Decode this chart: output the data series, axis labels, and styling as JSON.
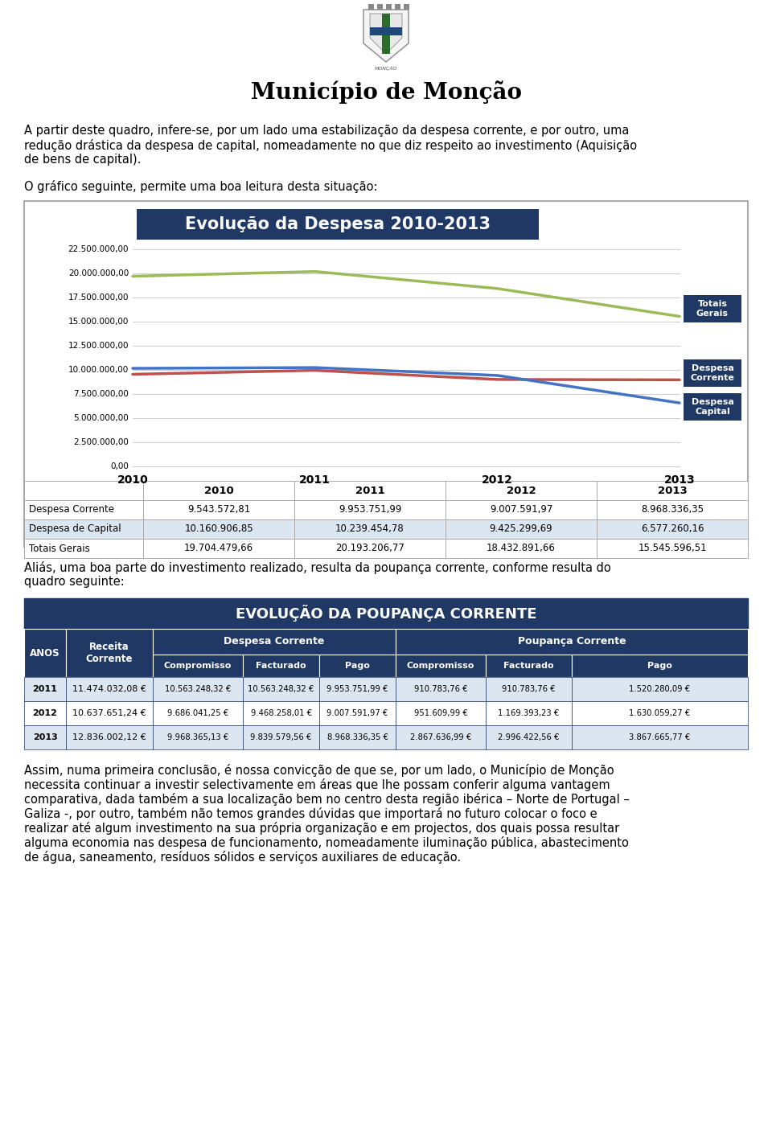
{
  "title": "Município de Monção",
  "para1_lines": [
    "A partir deste quadro, infere-se, por um lado uma estabilização da despesa corrente, e por outro, uma",
    "redução drástica da despesa de capital, nomeadamente no que diz respeito ao investimento (Aquisição",
    "de bens de capital)."
  ],
  "para2": "O gráfico seguinte, permite uma boa leitura desta situação:",
  "chart_title": "Evolução da Despesa 2010-2013",
  "years": [
    2010,
    2011,
    2012,
    2013
  ],
  "despesa_corrente": [
    9543572.81,
    9953751.99,
    9007591.97,
    8968336.35
  ],
  "despesa_capital": [
    10160906.85,
    10239454.78,
    9425299.69,
    6577260.16
  ],
  "totais_gerais": [
    19704479.66,
    20193206.77,
    18432891.66,
    15545596.51
  ],
  "line_color_corrente": "#c0504d",
  "line_color_capital": "#4472c4",
  "line_color_totais": "#9bbb59",
  "yticks": [
    0,
    2500000,
    5000000,
    7500000,
    10000000,
    12500000,
    15000000,
    17500000,
    20000000,
    22500000
  ],
  "ytick_labels": [
    "0,00",
    "2.500.000,00",
    "5.000.000,00",
    "7.500.000,00",
    "10.000.000,00",
    "12.500.000,00",
    "15.000.000,00",
    "17.500.000,00",
    "20.000.000,00",
    "22.500.000,00"
  ],
  "table1_col0": [
    "Despesa Corrente",
    "Despesa de Capital",
    "Totais Gerais"
  ],
  "table1_data": [
    [
      "9.543.572,81",
      "9.953.751,99",
      "9.007.591,97",
      "8.968.336,35"
    ],
    [
      "10.160.906,85",
      "10.239.454,78",
      "9.425.299,69",
      "6.577.260,16"
    ],
    [
      "19.704.479,66",
      "20.193.206,77",
      "18.432.891,66",
      "15.545.596,51"
    ]
  ],
  "para3_lines": [
    "Aliás, uma boa parte do investimento realizado, resulta da poupança corrente, conforme resulta do",
    "quadro seguinte:"
  ],
  "poupanca_title": "EVOLUÇÃO DA POUPANÇA CORRENTE",
  "poupanca_rows": [
    [
      "2011",
      "11.474.032,08 €",
      "10.563.248,32 €",
      "10.563.248,32 €",
      "9.953.751,99 €",
      "910.783,76 €",
      "910.783,76 €",
      "1.520.280,09 €"
    ],
    [
      "2012",
      "10.637.651,24 €",
      "9.686.041,25 €",
      "9.468.258,01 €",
      "9.007.591,97 €",
      "951.609,99 €",
      "1.169.393,23 €",
      "1.630.059,27 €"
    ],
    [
      "2013",
      "12.836.002,12 €",
      "9.968.365,13 €",
      "9.839.579,56 €",
      "8.968.336,35 €",
      "2.867.636,99 €",
      "2.996.422,56 €",
      "3.867.665,77 €"
    ]
  ],
  "para4_lines": [
    "Assim, numa primeira conclusão, é nossa convicção de que se, por um lado, o Município de Monção",
    "necessita continuar a investir selectivamente em áreas que lhe possam conferir alguma vantagem",
    "comparativa, dada também a sua localização bem no centro desta região ibérica – Norte de Portugal –",
    "Galiza -, por outro, também não temos grandes dúvidas que importará no futuro colocar o foco e",
    "realizar até algum investimento na sua própria organização e em projectos, dos quais possa resultar",
    "alguma economia nas despesa de funcionamento, nomeadamente iluminação pública, abastecimento",
    "de água, saneamento, resíduos sólidos e serviços auxiliares de educação."
  ],
  "header_blue": "#1f3864",
  "mid_blue": "#2e5f8a",
  "row_alt": "#dce6f1",
  "row_white": "#ffffff",
  "border_col": "#1f3864"
}
